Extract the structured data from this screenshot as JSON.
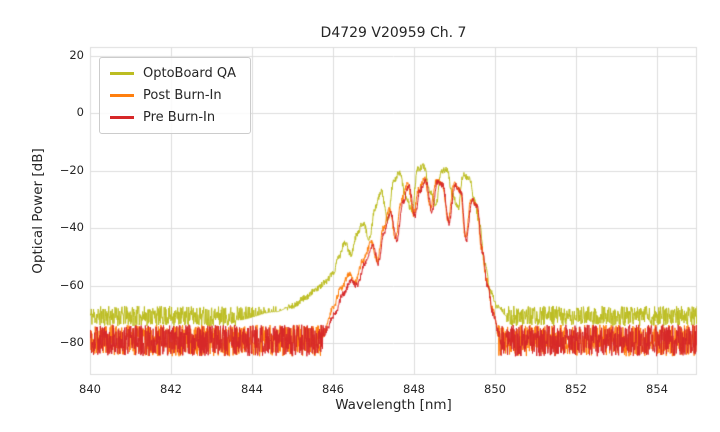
{
  "chart_data": {
    "type": "line",
    "title": "D4729 V20959 Ch. 7",
    "xlabel": "Wavelength [nm]",
    "ylabel": "Optical Power [dB]",
    "xlim": [
      840,
      855
    ],
    "ylim": [
      -91,
      23
    ],
    "xticks": [
      840,
      842,
      844,
      846,
      848,
      850,
      852,
      854
    ],
    "yticks": [
      20,
      0,
      -20,
      -40,
      -60,
      -80
    ],
    "xticklabels": [
      "840",
      "842",
      "844",
      "846",
      "848",
      "850",
      "852",
      "854"
    ],
    "yticklabels": [
      "20",
      "0",
      "−20",
      "−40",
      "−60",
      "−80"
    ],
    "grid": true,
    "grid_color": "#dcdcdc",
    "legend_position": "upper left",
    "series": [
      {
        "name": "OptoBoard QA",
        "color": "#bcbd22",
        "noise_floor_db": -70.5,
        "noise_amp_db": 3.5,
        "envelope": [
          [
            843.6,
            -72
          ],
          [
            844.6,
            -69
          ],
          [
            845.0,
            -67
          ],
          [
            845.35,
            -64
          ],
          [
            845.6,
            -61
          ],
          [
            845.8,
            -59
          ],
          [
            846.0,
            -56
          ],
          [
            846.15,
            -50
          ],
          [
            846.3,
            -45
          ],
          [
            846.45,
            -49
          ],
          [
            846.6,
            -42
          ],
          [
            846.75,
            -38
          ],
          [
            846.9,
            -44
          ],
          [
            847.05,
            -33
          ],
          [
            847.2,
            -27
          ],
          [
            847.35,
            -37
          ],
          [
            847.5,
            -24
          ],
          [
            847.65,
            -20.5
          ],
          [
            847.8,
            -29
          ],
          [
            847.95,
            -34
          ],
          [
            848.1,
            -19.5
          ],
          [
            848.25,
            -18.5
          ],
          [
            848.4,
            -27
          ],
          [
            848.55,
            -32
          ],
          [
            848.68,
            -20
          ],
          [
            848.82,
            -19.5
          ],
          [
            848.95,
            -28
          ],
          [
            849.1,
            -33
          ],
          [
            849.22,
            -21.5
          ],
          [
            849.38,
            -23
          ],
          [
            849.5,
            -30
          ],
          [
            849.62,
            -38
          ],
          [
            849.75,
            -52
          ],
          [
            849.9,
            -62
          ],
          [
            850.05,
            -67
          ],
          [
            850.3,
            -70.5
          ]
        ]
      },
      {
        "name": "Post Burn-In",
        "color": "#ff7f0e",
        "noise_floor_db": -79,
        "noise_amp_db": 5.5,
        "envelope": [
          [
            845.75,
            -78
          ],
          [
            846.0,
            -68
          ],
          [
            846.2,
            -61
          ],
          [
            846.4,
            -56
          ],
          [
            846.55,
            -59
          ],
          [
            846.75,
            -51
          ],
          [
            846.95,
            -45
          ],
          [
            847.1,
            -51
          ],
          [
            847.25,
            -40
          ],
          [
            847.4,
            -33.5
          ],
          [
            847.55,
            -43
          ],
          [
            847.7,
            -30
          ],
          [
            847.85,
            -24.5
          ],
          [
            848.0,
            -35
          ],
          [
            848.12,
            -26.5
          ],
          [
            848.27,
            -23
          ],
          [
            848.42,
            -33
          ],
          [
            848.56,
            -23.5
          ],
          [
            848.7,
            -24.5
          ],
          [
            848.85,
            -37
          ],
          [
            849.0,
            -24.5
          ],
          [
            849.15,
            -27
          ],
          [
            849.28,
            -43
          ],
          [
            849.42,
            -29.5
          ],
          [
            849.55,
            -32
          ],
          [
            849.68,
            -47
          ],
          [
            849.8,
            -58
          ],
          [
            849.95,
            -68
          ],
          [
            850.1,
            -78
          ]
        ]
      },
      {
        "name": "Pre Burn-In",
        "color": "#d62728",
        "noise_floor_db": -79,
        "noise_amp_db": 5.5,
        "envelope": [
          [
            845.75,
            -78
          ],
          [
            846.05,
            -70
          ],
          [
            846.25,
            -63
          ],
          [
            846.45,
            -58
          ],
          [
            846.6,
            -60
          ],
          [
            846.8,
            -52
          ],
          [
            847.0,
            -46
          ],
          [
            847.12,
            -52
          ],
          [
            847.28,
            -41
          ],
          [
            847.43,
            -34.5
          ],
          [
            847.58,
            -44
          ],
          [
            847.73,
            -31
          ],
          [
            847.88,
            -25
          ],
          [
            848.03,
            -36
          ],
          [
            848.15,
            -27
          ],
          [
            848.3,
            -23.8
          ],
          [
            848.45,
            -34
          ],
          [
            848.58,
            -24
          ],
          [
            848.72,
            -25
          ],
          [
            848.87,
            -38
          ],
          [
            849.02,
            -25
          ],
          [
            849.17,
            -27.5
          ],
          [
            849.3,
            -44
          ],
          [
            849.44,
            -30
          ],
          [
            849.57,
            -32.5
          ],
          [
            849.7,
            -48
          ],
          [
            849.82,
            -60
          ],
          [
            849.97,
            -70
          ],
          [
            850.12,
            -78
          ]
        ]
      }
    ]
  }
}
